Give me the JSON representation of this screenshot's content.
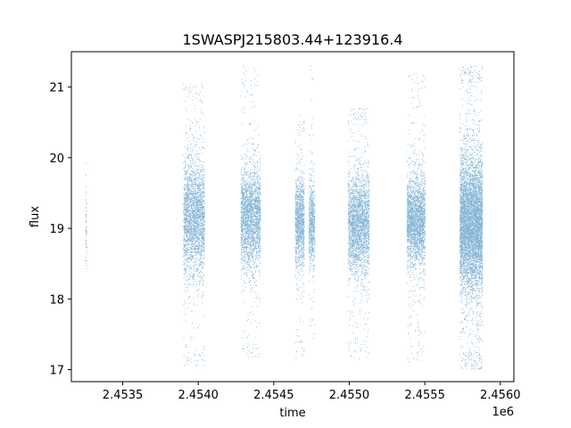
{
  "chart_data": {
    "type": "scatter",
    "title": "1SWASPJ215803.44+123916.4",
    "xlabel": "time",
    "ylabel": "flux",
    "x_offset_label": "1e6",
    "xlim": [
      2453160,
      2456090
    ],
    "ylim": [
      16.83,
      21.5
    ],
    "x_ticks": [
      2453500,
      2454000,
      2454500,
      2455000,
      2455500,
      2456000
    ],
    "x_tick_labels": [
      "2.4535",
      "2.4540",
      "2.4545",
      "2.4550",
      "2.4555",
      "2.4560"
    ],
    "y_ticks": [
      17,
      18,
      19,
      20,
      21
    ],
    "y_tick_labels": [
      "17",
      "18",
      "19",
      "20",
      "21"
    ],
    "grid": false,
    "color": "#1f77b4",
    "seasons": [
      {
        "x_start": 2453250,
        "x_end": 2453260,
        "y_core_low": 18.5,
        "y_core_high": 19.5,
        "y_min": 18.4,
        "y_max": 20.0,
        "density": 60
      },
      {
        "x_start": 2453900,
        "x_end": 2454040,
        "y_core_low": 18.5,
        "y_core_high": 19.8,
        "y_min": 17.05,
        "y_max": 21.05,
        "density": 2600
      },
      {
        "x_start": 2454280,
        "x_end": 2454410,
        "y_core_low": 18.6,
        "y_core_high": 19.7,
        "y_min": 17.15,
        "y_max": 21.3,
        "density": 2400
      },
      {
        "x_start": 2454640,
        "x_end": 2454700,
        "y_core_low": 18.6,
        "y_core_high": 19.6,
        "y_min": 17.15,
        "y_max": 20.6,
        "density": 1200
      },
      {
        "x_start": 2454730,
        "x_end": 2454770,
        "y_core_low": 18.6,
        "y_core_high": 19.5,
        "y_min": 17.4,
        "y_max": 21.3,
        "density": 700
      },
      {
        "x_start": 2454990,
        "x_end": 2455130,
        "y_core_low": 18.5,
        "y_core_high": 19.6,
        "y_min": 17.15,
        "y_max": 20.7,
        "density": 2600
      },
      {
        "x_start": 2455380,
        "x_end": 2455500,
        "y_core_low": 18.6,
        "y_core_high": 19.6,
        "y_min": 17.1,
        "y_max": 21.2,
        "density": 2600
      },
      {
        "x_start": 2455730,
        "x_end": 2455880,
        "y_core_low": 18.3,
        "y_core_high": 19.8,
        "y_min": 17.0,
        "y_max": 21.3,
        "density": 6000
      }
    ]
  }
}
